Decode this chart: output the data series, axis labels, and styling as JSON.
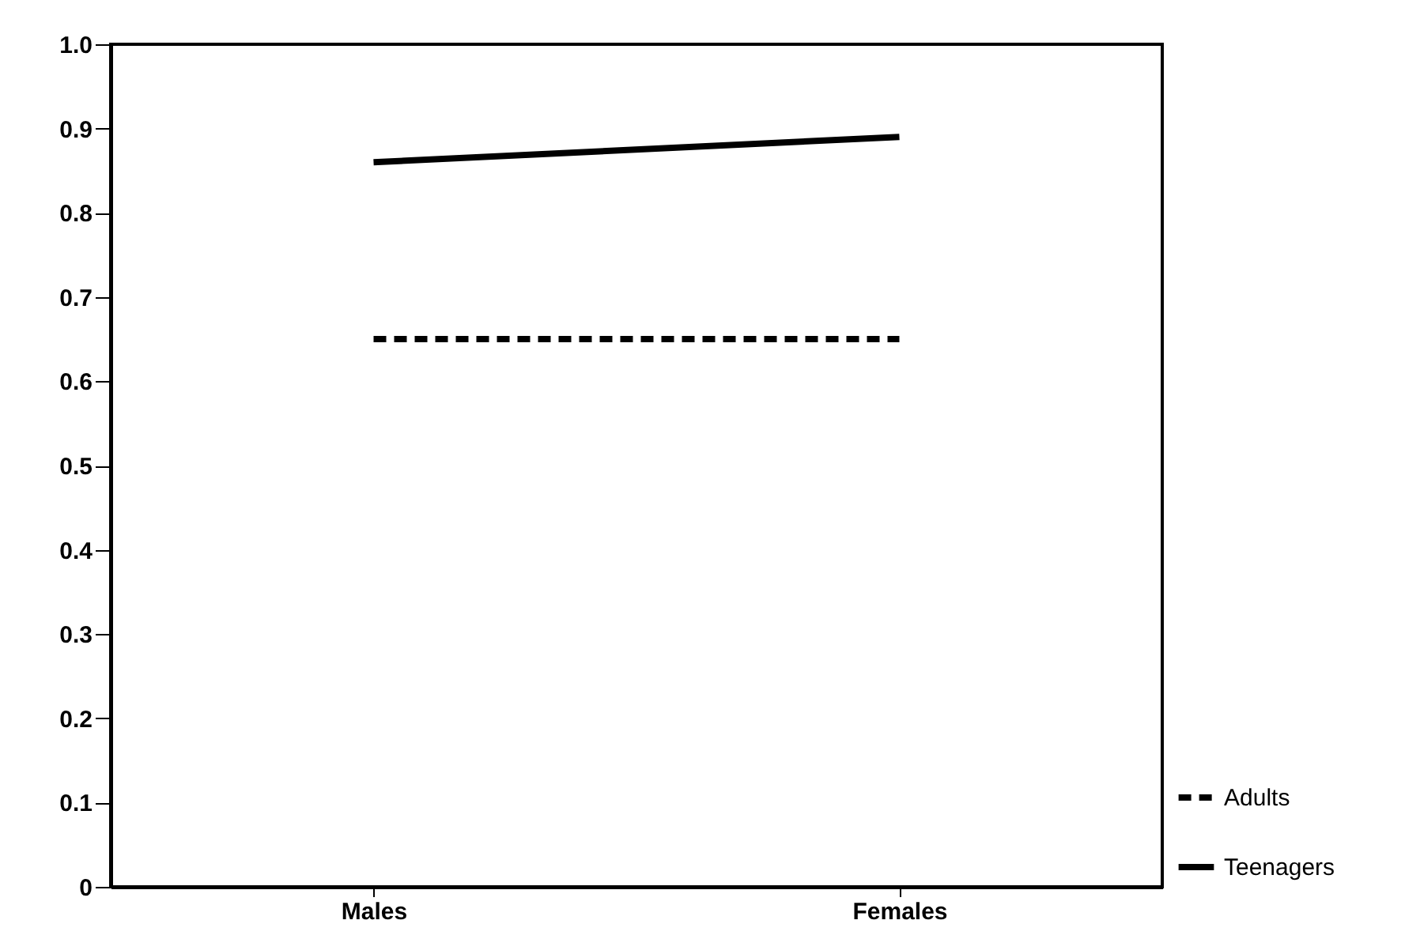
{
  "chart_data": {
    "type": "line",
    "categories": [
      "Males",
      "Females"
    ],
    "series": [
      {
        "name": "Adults",
        "color": "#000000",
        "line_style": "dashed",
        "values": [
          0.65,
          0.65
        ]
      },
      {
        "name": "Teenagers",
        "color": "#000000",
        "line_style": "solid",
        "values": [
          0.86,
          0.89
        ]
      }
    ],
    "ylim": [
      0,
      1.0
    ],
    "yticks": [
      0,
      0.1,
      0.2,
      0.3,
      0.4,
      0.5,
      0.6,
      0.7,
      0.8,
      0.9,
      {
        "value": 1.0,
        "label": "1.0"
      }
    ],
    "grid": false,
    "legend": "bottom right",
    "marker": "none"
  }
}
